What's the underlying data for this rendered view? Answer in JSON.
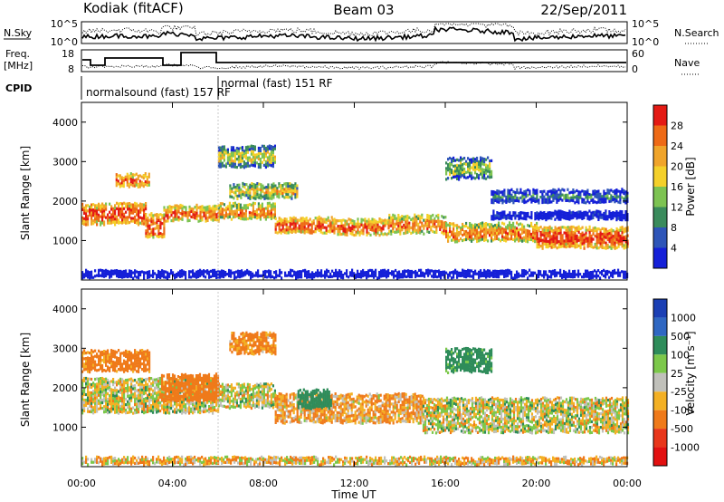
{
  "header": {
    "station": "Kodiak (fitACF)",
    "beam": "Beam 03",
    "date": "22/Sep/2011"
  },
  "summary": {
    "nsky_label": "N.Sky",
    "nsearch_label": "N.Search",
    "freq_label_1": "Freq.",
    "freq_label_2": "[MHz]",
    "nave_label": "Nave",
    "cpid_label": "CPID",
    "left_ticks_top": [
      "10^5",
      "10^0"
    ],
    "right_ticks_top": [
      "10^5",
      "10^0"
    ],
    "freq_ticks": [
      "18",
      "8"
    ],
    "nave_ticks": [
      "60",
      "0"
    ],
    "cpid_segments": [
      "normalsound (fast) 157 RF",
      "normal (fast) 151 RF"
    ]
  },
  "axes": {
    "x_ticks": [
      "00:00",
      "04:00",
      "08:00",
      "12:00",
      "16:00",
      "20:00",
      "00:00"
    ],
    "xlabel": "Time UT",
    "ylabel": "Slant Range [km]",
    "y_ticks": [
      "1000",
      "2000",
      "3000",
      "4000"
    ]
  },
  "colorbars": {
    "power": {
      "label": "Power [dB]",
      "ticks": [
        "4",
        "8",
        "12",
        "16",
        "20",
        "24",
        "28"
      ],
      "colors": [
        "#1520d8",
        "#2e55b8",
        "#3a8b5c",
        "#7dc352",
        "#f4d02a",
        "#f0a42a",
        "#ee6a16",
        "#e41a14"
      ]
    },
    "velocity": {
      "label": "Velocity [m s⁻¹]",
      "ticks": [
        "1000",
        "500",
        "100",
        "25",
        "-25",
        "-100",
        "-500",
        "-1000"
      ],
      "colors": [
        "#1b3fb4",
        "#2f67c2",
        "#2e8c5a",
        "#7cc84a",
        "#c0c0ba",
        "#f3b024",
        "#ef7a1a",
        "#e8361a",
        "#e21010"
      ]
    }
  },
  "chart_data": [
    {
      "type": "heatmap",
      "title": "Power",
      "x_unit": "hours UT",
      "xlim": [
        0,
        24
      ],
      "ylim": [
        0,
        4500
      ],
      "colorbar": "Power [dB]",
      "bands": [
        {
          "x0": 0.0,
          "x1": 2.8,
          "y0": 1450,
          "y1": 1950,
          "value": 28
        },
        {
          "x0": 2.8,
          "x1": 3.6,
          "y0": 1100,
          "y1": 1700,
          "value": 26
        },
        {
          "x0": 3.6,
          "x1": 6.0,
          "y0": 1500,
          "y1": 1900,
          "value": 26
        },
        {
          "x0": 6.0,
          "x1": 8.5,
          "y0": 1550,
          "y1": 1950,
          "value": 24
        },
        {
          "x0": 8.5,
          "x1": 11.0,
          "y0": 1200,
          "y1": 1600,
          "value": 28
        },
        {
          "x0": 11.0,
          "x1": 13.5,
          "y0": 1150,
          "y1": 1550,
          "value": 26
        },
        {
          "x0": 13.5,
          "x1": 16.0,
          "y0": 1200,
          "y1": 1650,
          "value": 24
        },
        {
          "x0": 16.0,
          "x1": 20.0,
          "y0": 1000,
          "y1": 1450,
          "value": 24
        },
        {
          "x0": 20.0,
          "x1": 24.0,
          "y0": 850,
          "y1": 1350,
          "value": 28
        },
        {
          "x0": 1.5,
          "x1": 3.0,
          "y0": 2400,
          "y1": 2700,
          "value": 28
        },
        {
          "x0": 6.0,
          "x1": 8.5,
          "y0": 2900,
          "y1": 3400,
          "value": 16
        },
        {
          "x0": 6.5,
          "x1": 9.5,
          "y0": 2100,
          "y1": 2450,
          "value": 20
        },
        {
          "x0": 16.0,
          "x1": 18.0,
          "y0": 2600,
          "y1": 3100,
          "value": 14
        },
        {
          "x0": 18.0,
          "x1": 24.0,
          "y0": 2000,
          "y1": 2300,
          "value": 10
        },
        {
          "x0": 18.0,
          "x1": 24.0,
          "y0": 1550,
          "y1": 1750,
          "value": 8
        },
        {
          "x0": 0.0,
          "x1": 24.0,
          "y0": 100,
          "y1": 250,
          "value": 6
        }
      ]
    },
    {
      "type": "heatmap",
      "title": "Velocity",
      "x_unit": "hours UT",
      "xlim": [
        0,
        24
      ],
      "ylim": [
        0,
        4500
      ],
      "colorbar": "Velocity [m s^-1]",
      "bands": [
        {
          "x0": 0.0,
          "x1": 6.0,
          "y0": 1400,
          "y1": 2250,
          "value": 0
        },
        {
          "x0": 6.0,
          "x1": 8.5,
          "y0": 1500,
          "y1": 2100,
          "value": 0
        },
        {
          "x0": 8.5,
          "x1": 15.0,
          "y0": 1150,
          "y1": 1850,
          "value": -100
        },
        {
          "x0": 15.0,
          "x1": 24.0,
          "y0": 900,
          "y1": 1750,
          "value": 0
        },
        {
          "x0": 0.0,
          "x1": 3.0,
          "y0": 2450,
          "y1": 2950,
          "value": -200
        },
        {
          "x0": 3.5,
          "x1": 6.0,
          "y0": 1700,
          "y1": 2350,
          "value": -300
        },
        {
          "x0": 6.5,
          "x1": 8.5,
          "y0": 2900,
          "y1": 3400,
          "value": -150
        },
        {
          "x0": 9.5,
          "x1": 11.0,
          "y0": 1500,
          "y1": 1950,
          "value": 300
        },
        {
          "x0": 16.0,
          "x1": 18.0,
          "y0": 2400,
          "y1": 3000,
          "value": 200
        },
        {
          "x0": 0.0,
          "x1": 24.0,
          "y0": 100,
          "y1": 250,
          "value": -50
        }
      ]
    }
  ]
}
